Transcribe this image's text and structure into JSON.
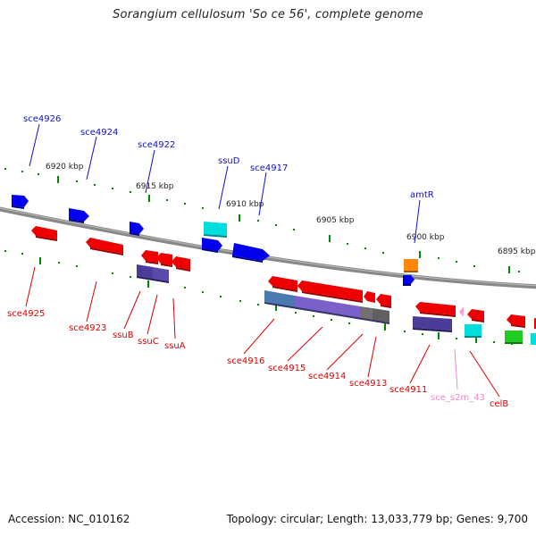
{
  "title": "Sorangium cellulosum 'So ce 56', complete genome",
  "accession": "Accession: NC_010162",
  "topology": "Topology: circular; Length: 13,033,779 bp; Genes: 9,700",
  "colors": {
    "forward_label": "#1010cc",
    "reverse_label": "#dd0000",
    "rna_label": "#ee88cc",
    "backbone": "#888888",
    "tick": "#008800",
    "gene_blue": "#0000ee",
    "gene_red": "#ee0000",
    "gene_cyan": "#00dddd",
    "gene_orange": "#ff8800",
    "gene_green": "#22cc22",
    "gene_gray": "#707070",
    "gene_violet": "#5544aa"
  },
  "scale_labels": [
    "6920 kbp",
    "6915 kbp",
    "6910 kbp",
    "6905 kbp",
    "6900 kbp",
    "6895 kbp"
  ],
  "forward_genes": [
    "sce4926",
    "sce4924",
    "sce4922",
    "ssuD",
    "sce4917",
    "amtR"
  ],
  "reverse_genes": [
    "sce4925",
    "sce4923",
    "ssuB",
    "ssuC",
    "ssuA",
    "sce4916",
    "sce4915",
    "sce4914",
    "sce4913",
    "sce4911",
    "sce_s2m_43",
    "celB"
  ]
}
